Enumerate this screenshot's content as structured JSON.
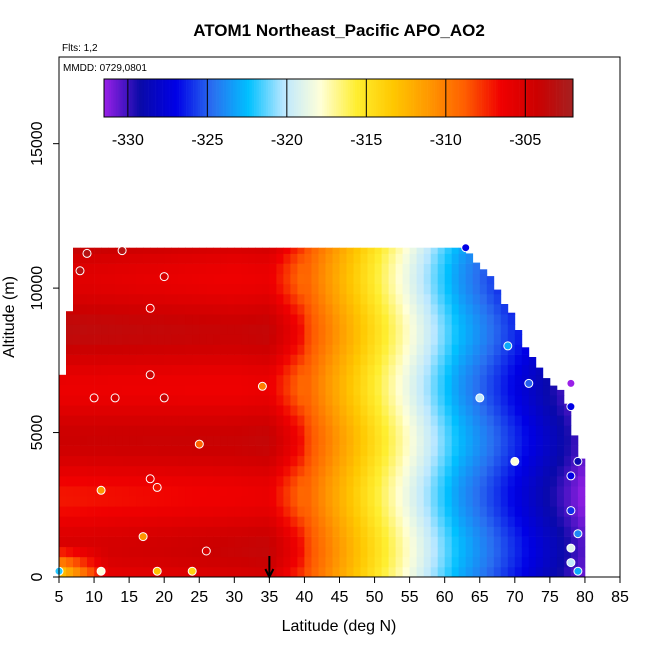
{
  "chart_data": {
    "type": "heatmap",
    "title": "ATOM1 Northeast_Pacific APO_AO2",
    "flights_note": "Flts: 1,2",
    "date_note": "MMDD: 0729,0801",
    "xlabel": "Latitude (deg N)",
    "ylabel": "Altitude (m)",
    "xlim": [
      5,
      85
    ],
    "ylim": [
      0,
      18000
    ],
    "x_ticks": [
      5,
      10,
      15,
      20,
      25,
      30,
      35,
      40,
      45,
      50,
      55,
      60,
      65,
      70,
      75,
      80,
      85
    ],
    "y_ticks": [
      0,
      5000,
      10000,
      15000
    ],
    "colorbar": {
      "range": [
        -331.5,
        -302
      ],
      "ticks": [
        -330,
        -325,
        -320,
        -315,
        -310,
        -305
      ],
      "colors": [
        "#a020f0",
        "#0000aa",
        "#0000ff",
        "#1e90ff",
        "#00bfff",
        "#bfefff",
        "#ffffe0",
        "#ffff00",
        "#ffd700",
        "#ffa500",
        "#ff6a00",
        "#ff0000",
        "#cd0000",
        "#b22222",
        "#8b2323"
      ]
    },
    "colorbar_colors": [
      "#9a20e8",
      "#0a0aa8",
      "#0000e6",
      "#2a6ef0",
      "#00c0ff",
      "#bde8ff",
      "#ffffd8",
      "#ffee30",
      "#ffc800",
      "#ff9800",
      "#ff5e00",
      "#f00000",
      "#cc0000",
      "#a52020"
    ],
    "grid": {
      "lat_step": 1,
      "alt_step": 350,
      "lat_range": [
        5,
        80
      ],
      "alt_range": [
        0,
        11400
      ]
    },
    "region": {
      "lat_min": 5,
      "upper_boundary": [
        [
          6,
          7000
        ],
        [
          7,
          11400
        ],
        [
          63,
          11400
        ],
        [
          64,
          11000
        ],
        [
          67,
          10300
        ],
        [
          68,
          9600
        ],
        [
          70,
          9000
        ],
        [
          71,
          8100
        ],
        [
          72,
          7800
        ],
        [
          75,
          6700
        ],
        [
          77,
          6400
        ],
        [
          78,
          5600
        ],
        [
          79,
          4200
        ],
        [
          80,
          4000
        ],
        [
          79,
          1600
        ],
        [
          79,
          0
        ]
      ]
    },
    "samples": [
      [
        8,
        10600,
        -303
      ],
      [
        9,
        11200,
        -303
      ],
      [
        14,
        11300,
        -303
      ],
      [
        20,
        10400,
        -305
      ],
      [
        18,
        9300,
        -306
      ],
      [
        18,
        7000,
        -304
      ],
      [
        10,
        6200,
        -306
      ],
      [
        13,
        6200,
        -305
      ],
      [
        20,
        6200,
        -304
      ],
      [
        34,
        6600,
        -310
      ],
      [
        25,
        4600,
        -309
      ],
      [
        18,
        3400,
        -306
      ],
      [
        19,
        3100,
        -307
      ],
      [
        11,
        3000,
        -311
      ],
      [
        17,
        1400,
        -311
      ],
      [
        26,
        900,
        -305
      ],
      [
        19,
        200,
        -313
      ],
      [
        24,
        200,
        -314
      ],
      [
        11,
        200,
        -318
      ],
      [
        5,
        200,
        -322
      ],
      [
        63,
        11400,
        -327
      ],
      [
        69,
        8000,
        -323
      ],
      [
        72,
        6700,
        -325
      ],
      [
        78,
        6700,
        -333
      ],
      [
        78,
        5900,
        -327
      ],
      [
        65,
        6200,
        -320
      ],
      [
        70,
        4000,
        -318
      ],
      [
        79,
        4000,
        -329
      ],
      [
        78,
        3500,
        -327
      ],
      [
        78,
        2300,
        -326
      ],
      [
        79,
        1500,
        -324
      ],
      [
        78,
        1000,
        -319
      ],
      [
        78,
        500,
        -320
      ],
      [
        79,
        200,
        -323
      ]
    ],
    "marker": {
      "lat": 35,
      "alt": 0,
      "direction": "down"
    }
  }
}
